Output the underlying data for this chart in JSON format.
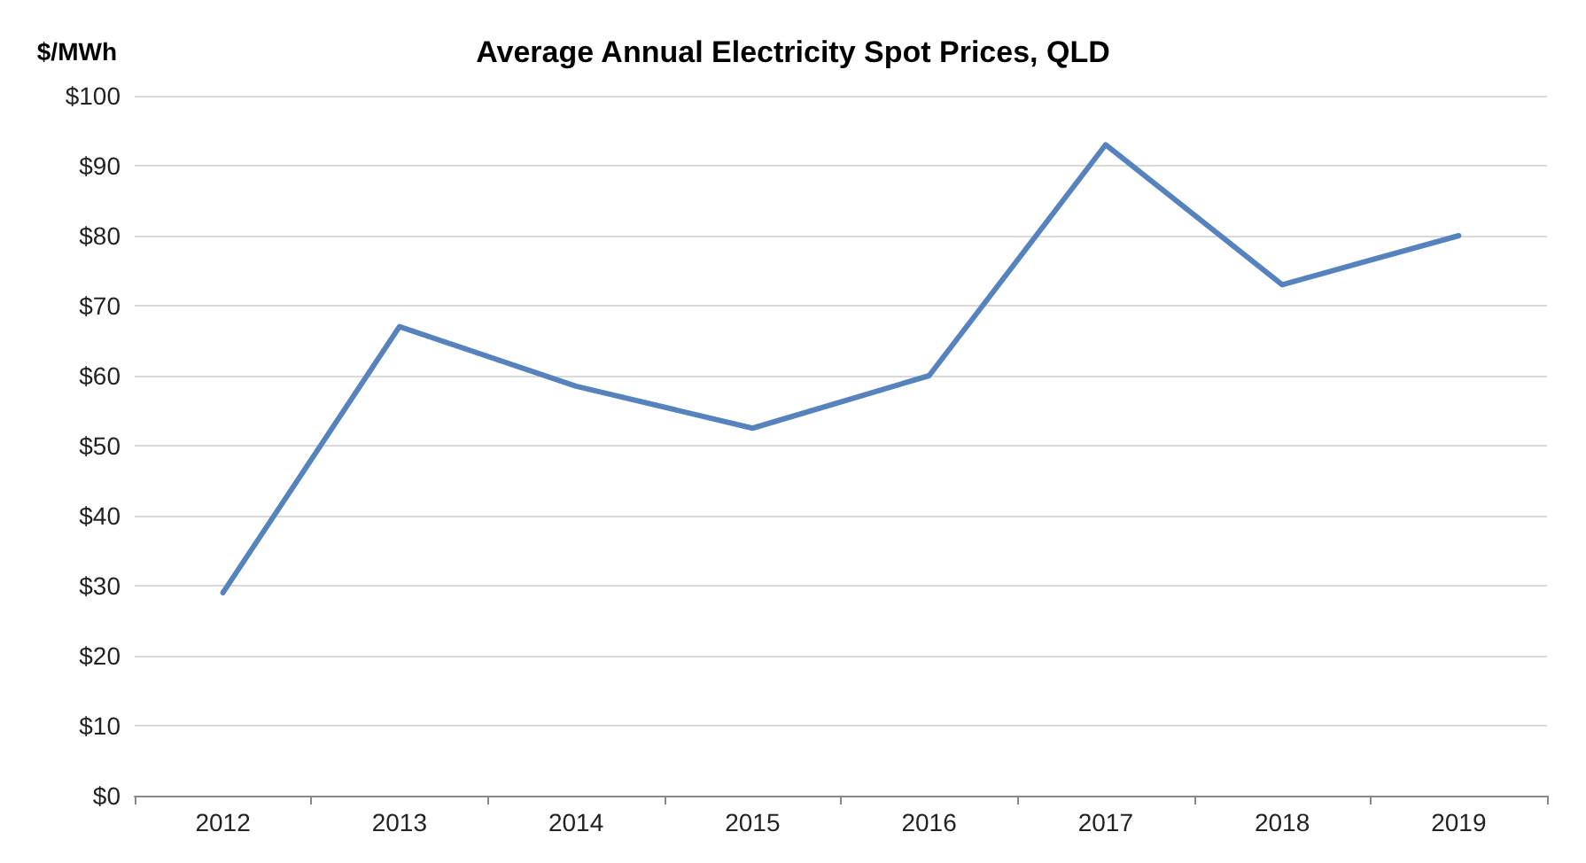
{
  "chart_data": {
    "type": "line",
    "title": "Average Annual Electricity Spot Prices, QLD",
    "ylabel": "$/MWh",
    "categories": [
      "2012",
      "2013",
      "2014",
      "2015",
      "2016",
      "2017",
      "2018",
      "2019"
    ],
    "series": [
      {
        "color": "#5683bd",
        "values": [
          29,
          67,
          58.5,
          52.5,
          60,
          93,
          73,
          80
        ]
      }
    ],
    "ylim": [
      0,
      100
    ],
    "yticks": [
      {
        "value": 0,
        "label": "$0"
      },
      {
        "value": 10,
        "label": "$10"
      },
      {
        "value": 20,
        "label": "$20"
      },
      {
        "value": 30,
        "label": "$30"
      },
      {
        "value": 40,
        "label": "$40"
      },
      {
        "value": 50,
        "label": "$50"
      },
      {
        "value": 60,
        "label": "$60"
      },
      {
        "value": 70,
        "label": "$70"
      },
      {
        "value": 80,
        "label": "$80"
      },
      {
        "value": 90,
        "label": "$90"
      },
      {
        "value": 100,
        "label": "$100"
      }
    ],
    "grid": "y",
    "marker": "none",
    "line_style": "solid"
  }
}
